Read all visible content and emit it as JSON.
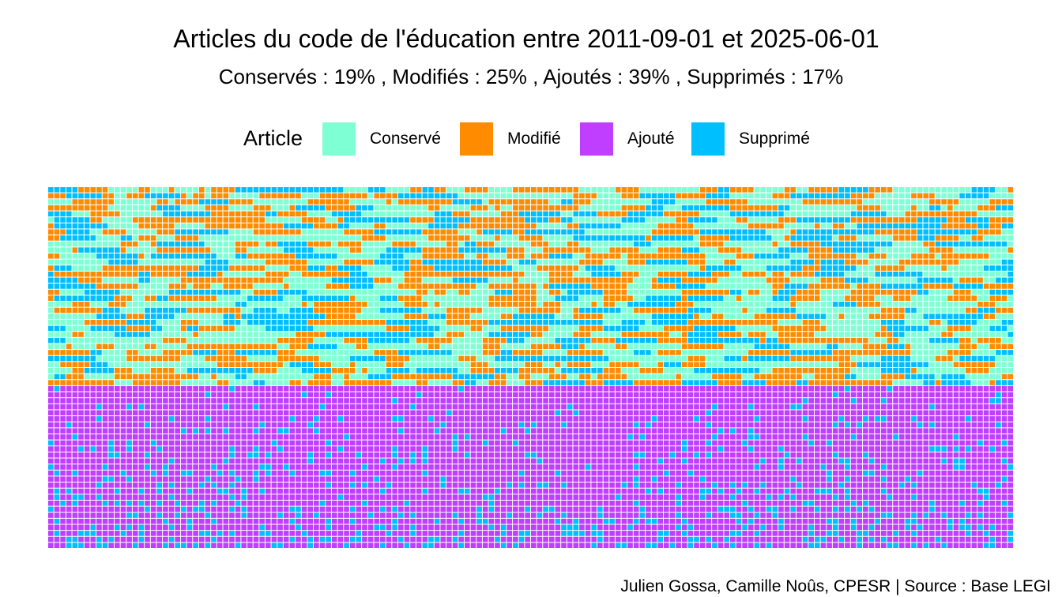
{
  "chart_data": {
    "type": "waffle",
    "title": "Articles du code de l'éducation entre 2011-09-01 et 2025-06-01",
    "subtitle": "Conservés :  19% , Modifiés :  25% , Ajoutés :  39% , Supprimés :  17%",
    "legend": {
      "title": "Article",
      "position": "top",
      "items": [
        {
          "label": "Conservé",
          "color": "#7FFFD4"
        },
        {
          "label": "Modifié",
          "color": "#FF8C00"
        },
        {
          "label": "Ajouté",
          "color": "#BF3EFF"
        },
        {
          "label": "Supprimé",
          "color": "#00BFFF"
        }
      ]
    },
    "shares_percent": {
      "Conservé": 19,
      "Modifié": 25,
      "Ajouté": 39,
      "Supprimé": 17
    },
    "caption": "Julien Gossa, Camille Noûs, CPESR  |  Source : Base LEGI"
  }
}
